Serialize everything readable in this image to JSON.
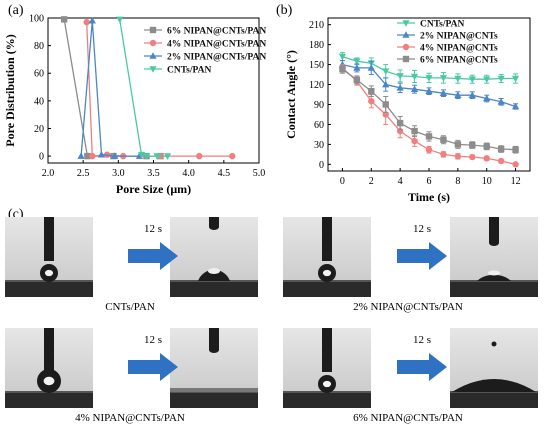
{
  "panels": {
    "a": "(a)",
    "b": "(b)",
    "c": "(c)"
  },
  "chart_data": [
    {
      "type": "line",
      "xlabel": "Pore Size (μm)",
      "ylabel": "Pore Distribution (%)",
      "xlim": [
        2.0,
        5.0
      ],
      "ylim": [
        -5,
        100
      ],
      "xticks": [
        "2.0",
        "2.5",
        "3.0",
        "3.5",
        "4.0",
        "4.5",
        "5.0"
      ],
      "yticks": [
        "0",
        "20",
        "40",
        "60",
        "80",
        "100"
      ],
      "legend_position": "top-right",
      "series": [
        {
          "name": "6% NIPAN@CNTs/PAN",
          "color": "#8c8c8c",
          "marker": "square",
          "points": [
            [
              2.23,
              99
            ],
            [
              2.56,
              0
            ],
            [
              2.93,
              0
            ],
            [
              3.4,
              0
            ],
            [
              3.6,
              0
            ]
          ]
        },
        {
          "name": "4% NIPAN@CNTs/PAN",
          "color": "#f07f7f",
          "marker": "circle",
          "points": [
            [
              2.55,
              97
            ],
            [
              2.63,
              0
            ],
            [
              2.84,
              1
            ],
            [
              3.07,
              0
            ],
            [
              3.6,
              0
            ],
            [
              4.15,
              0
            ],
            [
              4.62,
              0
            ]
          ]
        },
        {
          "name": "2% NIPAN@CNTs/PAN",
          "color": "#4a86c8",
          "marker": "triangle-up",
          "points": [
            [
              2.47,
              0
            ],
            [
              2.63,
              98
            ],
            [
              2.76,
              1
            ],
            [
              2.95,
              0
            ],
            [
              3.3,
              0
            ]
          ]
        },
        {
          "name": "CNTs/PAN",
          "color": "#4cc9a4",
          "marker": "triangle-down",
          "points": [
            [
              3.02,
              99
            ],
            [
              3.33,
              1
            ],
            [
              3.4,
              0
            ],
            [
              3.55,
              0
            ],
            [
              3.7,
              0
            ]
          ]
        }
      ]
    },
    {
      "type": "line",
      "xlabel": "Time (s)",
      "ylabel": "Contact Angle (°)",
      "xlim": [
        -1,
        13
      ],
      "ylim": [
        -10,
        220
      ],
      "xticks": [
        "0",
        "2",
        "4",
        "6",
        "8",
        "10",
        "12"
      ],
      "yticks": [
        "0",
        "30",
        "60",
        "90",
        "120",
        "150",
        "180",
        "210"
      ],
      "legend_position": "top-right",
      "x": [
        0,
        1,
        2,
        3,
        4,
        5,
        6,
        7,
        8,
        9,
        10,
        11,
        12
      ],
      "series": [
        {
          "name": "CNTs/PAN",
          "color": "#4cc9a4",
          "marker": "triangle-down",
          "values": [
            162,
            155,
            152,
            140,
            133,
            132,
            130,
            130,
            129,
            128,
            128,
            129,
            129
          ],
          "errors": [
            6,
            5,
            8,
            10,
            9,
            9,
            7,
            8,
            7,
            6,
            6,
            6,
            7
          ]
        },
        {
          "name": "2% NIPAN@CNTs",
          "color": "#4a86c8",
          "marker": "triangle-up",
          "values": [
            150,
            145,
            145,
            120,
            115,
            113,
            110,
            107,
            104,
            104,
            99,
            94,
            87
          ],
          "errors": [
            6,
            6,
            10,
            10,
            7,
            6,
            5,
            5,
            5,
            5,
            5,
            5,
            4
          ]
        },
        {
          "name": "4% NIPAN@CNTs",
          "color": "#f07f7f",
          "marker": "circle",
          "values": [
            145,
            125,
            95,
            75,
            50,
            35,
            22,
            15,
            12,
            11,
            9,
            5,
            0
          ],
          "errors": [
            5,
            6,
            10,
            15,
            10,
            8,
            5,
            4,
            4,
            3,
            3,
            3,
            2
          ]
        },
        {
          "name": "6% NIPAN@CNTs",
          "color": "#8c8c8c",
          "marker": "square",
          "values": [
            143,
            127,
            110,
            90,
            62,
            50,
            42,
            37,
            30,
            29,
            27,
            23,
            22
          ],
          "errors": [
            6,
            6,
            8,
            12,
            10,
            8,
            7,
            6,
            6,
            5,
            5,
            5,
            5
          ]
        }
      ]
    }
  ],
  "photos": {
    "arrow_label": "12 s",
    "items": [
      {
        "label": "CNTs/PAN"
      },
      {
        "label": "2% NIPAN@CNTs/PAN"
      },
      {
        "label": "4% NIPAN@CNTs/PAN"
      },
      {
        "label": "6% NIPAN@CNTs/PAN"
      }
    ],
    "arrow_color": "#2f72c4"
  }
}
